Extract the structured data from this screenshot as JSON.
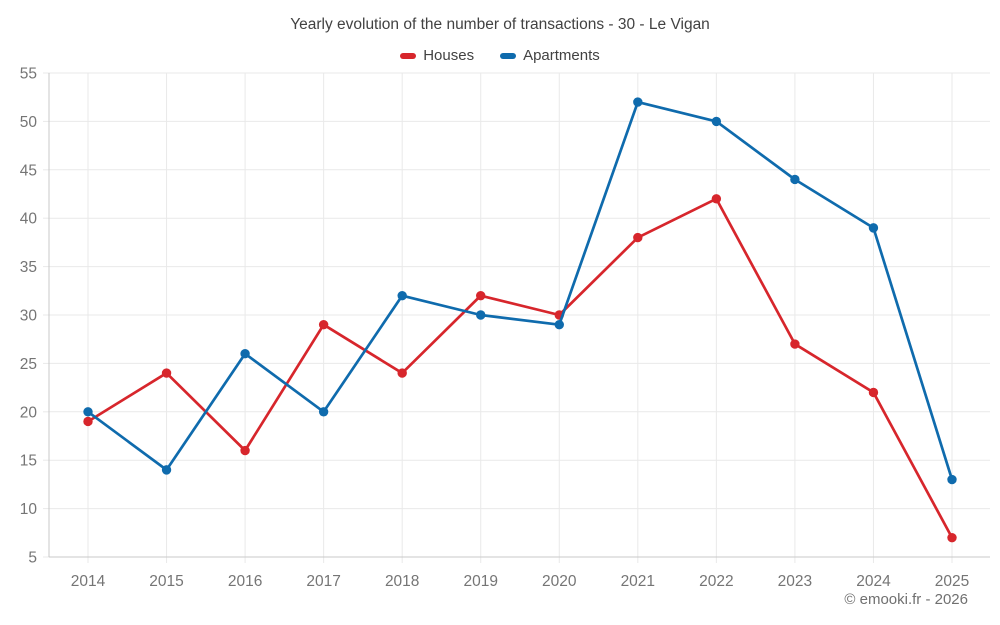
{
  "title": "Yearly evolution of the number of transactions - 30 - Le Vigan",
  "footer": {
    "copyright": "© emooki.fr - 2026"
  },
  "theme": {
    "grid_color": "#e9e9e9",
    "axis_color": "#c9c9c9",
    "tick_label_color": "#757575",
    "title_color": "#424242",
    "houses_color": "#d7262c",
    "apartments_color": "#0f6bad"
  },
  "chart_data": {
    "type": "line",
    "title": "Yearly evolution of the number of transactions - 30 - Le Vigan",
    "categories": [
      "2014",
      "2015",
      "2016",
      "2017",
      "2018",
      "2019",
      "2020",
      "2021",
      "2022",
      "2023",
      "2024",
      "2025"
    ],
    "series": [
      {
        "name": "Houses",
        "color": "#d7262c",
        "values": [
          19,
          24,
          16,
          29,
          24,
          32,
          30,
          38,
          42,
          27,
          22,
          7
        ]
      },
      {
        "name": "Apartments",
        "color": "#0f6bad",
        "values": [
          20,
          14,
          26,
          20,
          32,
          30,
          29,
          52,
          50,
          44,
          39,
          13
        ]
      }
    ],
    "xlabel": "",
    "ylabel": "",
    "ylim": [
      5,
      55
    ],
    "yticks": [
      5,
      10,
      15,
      20,
      25,
      30,
      35,
      40,
      45,
      50,
      55
    ],
    "grid": true,
    "legend_position": "top"
  }
}
